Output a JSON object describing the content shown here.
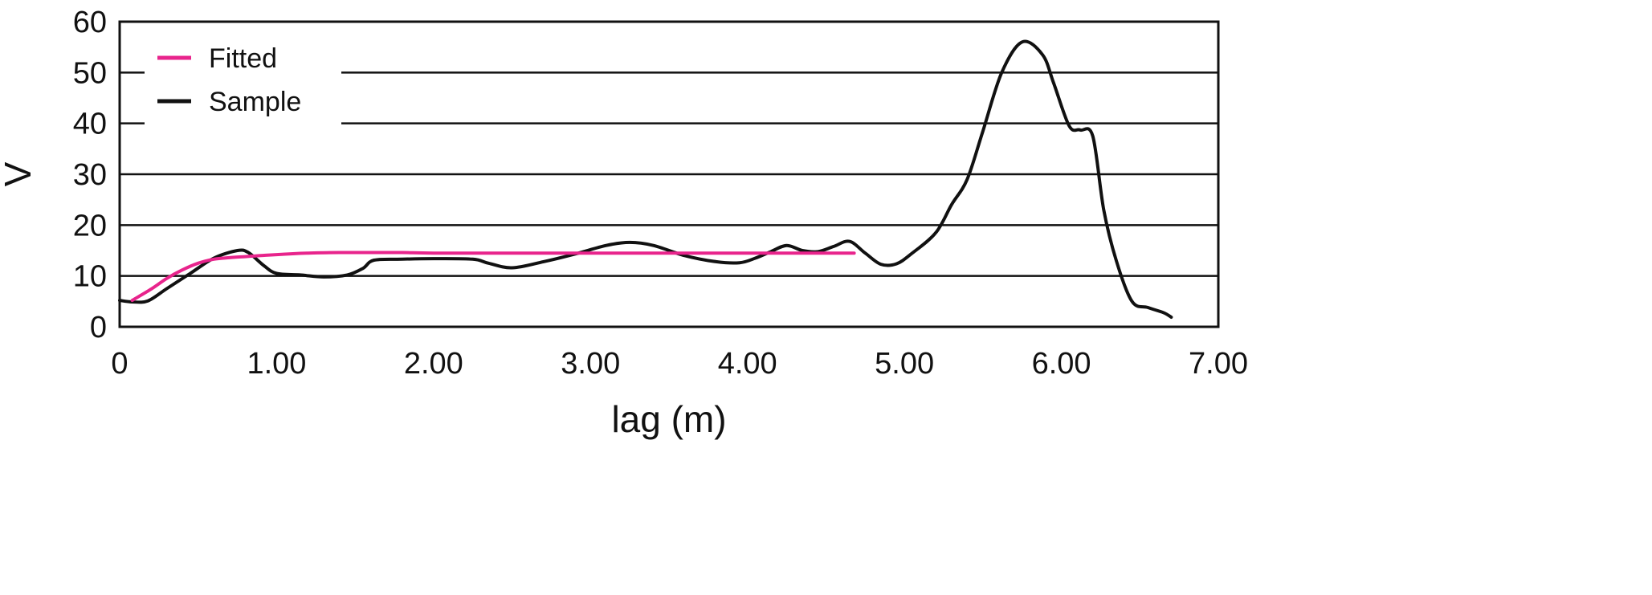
{
  "chart_data": {
    "type": "line",
    "xlabel": "lag (m)",
    "ylabel": "V",
    "xlim": [
      0,
      7
    ],
    "ylim": [
      0,
      60
    ],
    "x_ticks": [
      0,
      1,
      2,
      3,
      4,
      5,
      6,
      7
    ],
    "x_tick_labels": [
      "0",
      "1.00",
      "2.00",
      "3.00",
      "4.00",
      "5.00",
      "6.00",
      "7.00"
    ],
    "y_ticks": [
      0,
      10,
      20,
      30,
      40,
      50,
      60
    ],
    "y_tick_labels": [
      "0",
      "10",
      "20",
      "30",
      "40",
      "50",
      "60"
    ],
    "grid": "horizontal",
    "legend_position": "top-left",
    "series": [
      {
        "name": "Fitted",
        "color": "#e8248c",
        "x": [
          0.08,
          0.2,
          0.3,
          0.4,
          0.5,
          0.6,
          0.7,
          0.8,
          0.9,
          1.0,
          1.2,
          1.4,
          1.6,
          1.8,
          2.0,
          2.5,
          3.0,
          3.5,
          4.0,
          4.5,
          4.68
        ],
        "y": [
          5.2,
          7.4,
          9.5,
          11.2,
          12.5,
          13.3,
          13.6,
          13.8,
          14.0,
          14.2,
          14.5,
          14.6,
          14.6,
          14.6,
          14.5,
          14.5,
          14.5,
          14.5,
          14.5,
          14.5,
          14.5
        ]
      },
      {
        "name": "Sample",
        "color": "#111111",
        "x": [
          0.0,
          0.08,
          0.18,
          0.3,
          0.45,
          0.6,
          0.75,
          0.82,
          0.92,
          1.0,
          1.15,
          1.3,
          1.45,
          1.55,
          1.62,
          1.8,
          2.0,
          2.25,
          2.35,
          2.5,
          2.7,
          2.9,
          3.1,
          3.25,
          3.4,
          3.6,
          3.8,
          3.95,
          4.05,
          4.15,
          4.25,
          4.35,
          4.45,
          4.55,
          4.65,
          4.75,
          4.85,
          4.95,
          5.05,
          5.2,
          5.3,
          5.4,
          5.5,
          5.62,
          5.75,
          5.88,
          5.95,
          6.05,
          6.12,
          6.2,
          6.27,
          6.35,
          6.45,
          6.55,
          6.65,
          6.7
        ],
        "y": [
          5.2,
          4.9,
          5.1,
          7.5,
          10.5,
          13.5,
          15.0,
          14.6,
          12.0,
          10.5,
          10.2,
          9.8,
          10.2,
          11.5,
          13.1,
          13.3,
          13.4,
          13.3,
          12.5,
          11.6,
          12.8,
          14.3,
          16.0,
          16.6,
          16.0,
          14.0,
          12.8,
          12.6,
          13.5,
          14.8,
          16.0,
          15.0,
          14.8,
          15.8,
          16.8,
          14.5,
          12.3,
          12.4,
          14.5,
          18.5,
          24.0,
          29.0,
          38.5,
          50.0,
          56.0,
          53.5,
          48.0,
          39.5,
          38.7,
          37.5,
          23.0,
          13.0,
          5.0,
          3.8,
          2.8,
          1.9
        ]
      }
    ]
  }
}
